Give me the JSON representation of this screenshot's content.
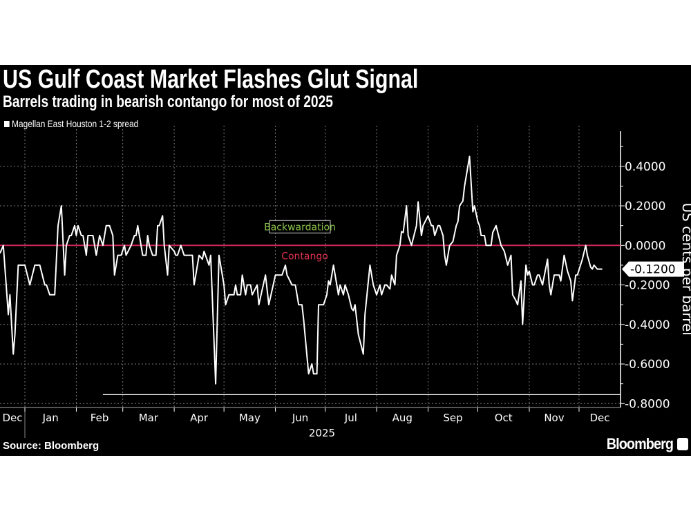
{
  "title": "US Gulf Coast Market Flashes Glut Signal",
  "subtitle": "Barrels trading in bearish contango for most of 2025",
  "source": "Source: Bloomberg",
  "brand": "Bloomberg",
  "chart_data": {
    "type": "line",
    "title": "US Gulf Coast Market Flashes Glut Signal",
    "subtitle": "Barrels trading in bearish contango for most of 2025",
    "ylabel": "US cents per barrel",
    "xlabel": "2025",
    "legend": {
      "position": "top-left",
      "entries": [
        "Magellan East Houston 1-2 spread"
      ]
    },
    "grid": true,
    "colors": {
      "background": "#000000",
      "series": "#ffffff",
      "zero_line": "#d0285a",
      "backwardation": "#8bc34a",
      "contango": "#e0324e"
    },
    "xlim": [
      "2024-12-17",
      "2025-12-26"
    ],
    "ylim": [
      -0.82,
      0.56
    ],
    "yticks": [
      "0.4000",
      "0.2000",
      "0.0000",
      "-0.2000",
      "-0.4000",
      "-0.6000",
      "-0.8000"
    ],
    "ytick_values": [
      0.4,
      0.2,
      0,
      -0.2,
      -0.4,
      -0.6,
      -0.8
    ],
    "xticks": [
      "Dec",
      "Jan",
      "Feb",
      "Mar",
      "Apr",
      "May",
      "Jun",
      "Jul",
      "Aug",
      "Sep",
      "Oct",
      "Nov",
      "Dec"
    ],
    "xtick_months": [
      "2024-12",
      "2025-01",
      "2025-02",
      "2025-03",
      "2025-04",
      "2025-05",
      "2025-06",
      "2025-07",
      "2025-08",
      "2025-09",
      "2025-10",
      "2025-11",
      "2025-12"
    ],
    "annotations": {
      "backwardation": "Backwardation",
      "contango": "Contango",
      "last_value": "-0.1200"
    },
    "reference_lines": [
      {
        "y": 0
      },
      {
        "y": -0.755,
        "from": "2025-02-17"
      }
    ],
    "series": [
      {
        "name": "Magellan East Houston 1-2 spread",
        "x": [
          "2024-12-17",
          "2024-12-19",
          "2024-12-22",
          "2024-12-23",
          "2024-12-25",
          "2024-12-26",
          "2024-12-28",
          "2025-01-01",
          "2025-01-04",
          "2025-01-07",
          "2025-01-10",
          "2025-01-13",
          "2025-01-14",
          "2025-01-16",
          "2025-01-19",
          "2025-01-21",
          "2025-01-23",
          "2025-01-25",
          "2025-01-26",
          "2025-01-28",
          "2025-01-29",
          "2025-01-31",
          "2025-02-01",
          "2025-02-02",
          "2025-02-04",
          "2025-02-05",
          "2025-02-07",
          "2025-02-08",
          "2025-02-11",
          "2025-02-13",
          "2025-02-15",
          "2025-02-17",
          "2025-02-19",
          "2025-02-21",
          "2025-02-23",
          "2025-02-24",
          "2025-02-26",
          "2025-02-28",
          "2025-03-02",
          "2025-03-03",
          "2025-03-06",
          "2025-03-08",
          "2025-03-09",
          "2025-03-10",
          "2025-03-13",
          "2025-03-15",
          "2025-03-16",
          "2025-03-17",
          "2025-03-19",
          "2025-03-21",
          "2025-03-22",
          "2025-03-23",
          "2025-03-25",
          "2025-03-26",
          "2025-03-28",
          "2025-03-29",
          "2025-04-01",
          "2025-04-02",
          "2025-04-03",
          "2025-04-05",
          "2025-04-07",
          "2025-04-12",
          "2025-04-13",
          "2025-04-16",
          "2025-04-18",
          "2025-04-19",
          "2025-04-22",
          "2025-04-23",
          "2025-04-26",
          "2025-04-28",
          "2025-04-30",
          "2025-05-01",
          "2025-05-02",
          "2025-05-04",
          "2025-05-07",
          "2025-05-08",
          "2025-05-09",
          "2025-05-11",
          "2025-05-12",
          "2025-05-14",
          "2025-05-15",
          "2025-05-17",
          "2025-05-18",
          "2025-05-21",
          "2025-05-22",
          "2025-05-26",
          "2025-05-28",
          "2025-06-01",
          "2025-06-05",
          "2025-06-07",
          "2025-06-08",
          "2025-06-11",
          "2025-06-13",
          "2025-06-15",
          "2025-06-17",
          "2025-06-18",
          "2025-06-21",
          "2025-06-23",
          "2025-06-24",
          "2025-06-26",
          "2025-06-27",
          "2025-06-30",
          "2025-07-02",
          "2025-07-03",
          "2025-07-04",
          "2025-07-06",
          "2025-07-07",
          "2025-07-09",
          "2025-07-10",
          "2025-07-12",
          "2025-07-13",
          "2025-07-15",
          "2025-07-17",
          "2025-07-18",
          "2025-07-19",
          "2025-07-21",
          "2025-07-24",
          "2025-07-25",
          "2025-07-28",
          "2025-07-30",
          "2025-08-01",
          "2025-08-03",
          "2025-08-04",
          "2025-08-06",
          "2025-08-07",
          "2025-08-09",
          "2025-08-10",
          "2025-08-12",
          "2025-08-13",
          "2025-08-15",
          "2025-08-16",
          "2025-08-17",
          "2025-08-19",
          "2025-08-20",
          "2025-08-22",
          "2025-08-25",
          "2025-08-26",
          "2025-08-28",
          "2025-08-29",
          "2025-09-01",
          "2025-09-03",
          "2025-09-04",
          "2025-09-05",
          "2025-09-07",
          "2025-09-08",
          "2025-09-10",
          "2025-09-11",
          "2025-09-12",
          "2025-09-14",
          "2025-09-16",
          "2025-09-18",
          "2025-09-19",
          "2025-09-20",
          "2025-09-22",
          "2025-09-23",
          "2025-09-25",
          "2025-09-26",
          "2025-09-28",
          "2025-09-29",
          "2025-10-01",
          "2025-10-02",
          "2025-10-03",
          "2025-10-05",
          "2025-10-06",
          "2025-10-09",
          "2025-10-10",
          "2025-10-12",
          "2025-10-15",
          "2025-10-17",
          "2025-10-19",
          "2025-10-21",
          "2025-10-22",
          "2025-10-24",
          "2025-10-25",
          "2025-10-27",
          "2025-10-28",
          "2025-10-30",
          "2025-10-31",
          "2025-11-01",
          "2025-11-03",
          "2025-11-04",
          "2025-11-06",
          "2025-11-07",
          "2025-11-09",
          "2025-11-12",
          "2025-11-13",
          "2025-11-14",
          "2025-11-16",
          "2025-11-19",
          "2025-11-20",
          "2025-11-22",
          "2025-11-24",
          "2025-11-26",
          "2025-11-27",
          "2025-11-29",
          "2025-11-30",
          "2025-12-03",
          "2025-12-05",
          "2025-12-06",
          "2025-12-08",
          "2025-12-09",
          "2025-12-10",
          "2025-12-12",
          "2025-12-15"
        ],
        "y": [
          -0.04,
          0,
          -0.35,
          -0.25,
          -0.55,
          -0.45,
          -0.1,
          -0.1,
          -0.2,
          -0.1,
          -0.1,
          -0.2,
          -0.2,
          -0.25,
          -0.25,
          0.1,
          0.2,
          -0.15,
          0,
          0.05,
          0.05,
          0.1,
          0.05,
          0.1,
          0.05,
          0.05,
          -0.05,
          0.05,
          0.05,
          -0.05,
          0.05,
          0,
          0.1,
          0.1,
          0.05,
          -0.15,
          -0.05,
          -0.05,
          0,
          -0.05,
          0,
          0.05,
          0.05,
          0.1,
          -0.05,
          -0.05,
          0.05,
          0,
          -0.05,
          -0.05,
          0.1,
          0.1,
          0.15,
          0,
          -0.15,
          0,
          -0.03,
          -0.05,
          -0.05,
          0,
          -0.05,
          -0.05,
          -0.2,
          -0.05,
          -0.07,
          -0.03,
          -0.1,
          -0.05,
          -0.7,
          -0.05,
          -0.15,
          -0.2,
          -0.3,
          -0.25,
          -0.25,
          -0.2,
          -0.25,
          -0.25,
          -0.15,
          -0.25,
          -0.2,
          -0.2,
          -0.25,
          -0.2,
          -0.3,
          -0.15,
          -0.3,
          -0.15,
          -0.15,
          -0.1,
          -0.15,
          -0.2,
          -0.2,
          -0.3,
          -0.3,
          -0.375,
          -0.65,
          -0.6,
          -0.65,
          -0.65,
          -0.3,
          -0.3,
          -0.25,
          -0.18,
          -0.2,
          -0.1,
          -0.15,
          -0.25,
          -0.2,
          -0.25,
          -0.2,
          -0.25,
          -0.32,
          -0.33,
          -0.3,
          -0.45,
          -0.55,
          -0.35,
          -0.1,
          -0.2,
          -0.25,
          -0.2,
          -0.25,
          -0.2,
          -0.2,
          -0.22,
          -0.15,
          -0.2,
          -0.05,
          0,
          0.07,
          0.065,
          0.2,
          0.05,
          0,
          0.1,
          0.22,
          0.05,
          0.1,
          0.15,
          0.1,
          0.1,
          0.05,
          0.1,
          0.1,
          0.05,
          -0.05,
          -0.1,
          0,
          0.02,
          0.1,
          0.12,
          0.2,
          0.225,
          0.3,
          0.4,
          0.45,
          0.17,
          0.2,
          0.12,
          0.1,
          0.05,
          0.05,
          0,
          0,
          0.065,
          0.1,
          0,
          -0.03,
          -0.1,
          -0.05,
          -0.25,
          -0.28,
          -0.3,
          -0.18,
          -0.4,
          -0.1,
          -0.15,
          -0.13,
          -0.2,
          -0.2,
          -0.15,
          -0.15,
          -0.2,
          -0.07,
          -0.2,
          -0.25,
          -0.15,
          -0.15,
          -0.18,
          -0.05,
          -0.13,
          -0.18,
          -0.28,
          -0.15,
          -0.15,
          -0.07,
          0,
          -0.05,
          -0.11,
          -0.12,
          -0.1,
          -0.12,
          -0.12
        ]
      }
    ]
  }
}
